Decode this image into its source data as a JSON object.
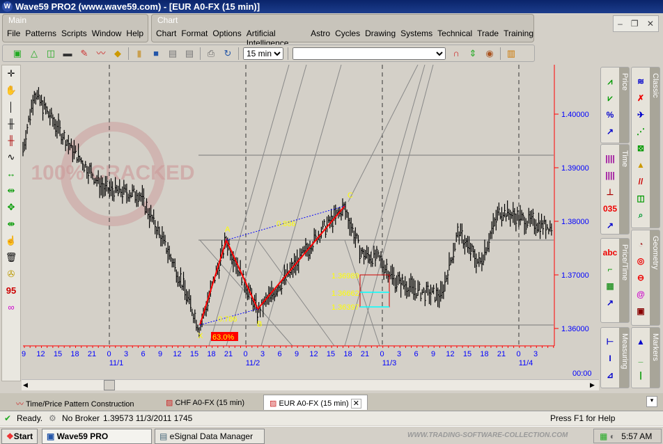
{
  "window": {
    "title": "Wave59 PRO2 (www.wave59.com)  - [EUR A0-FX (15 min)]"
  },
  "main_band": {
    "title": "Main",
    "menu": [
      "File",
      "Patterns",
      "Scripts",
      "Window",
      "Help"
    ]
  },
  "chart_band": {
    "title": "Chart",
    "menu": [
      "Chart",
      "Format",
      "Options",
      "Artificial Intelligence",
      "Astro",
      "Cycles",
      "Drawing",
      "Systems",
      "Technical",
      "Trade",
      "Training"
    ]
  },
  "toolbar": {
    "interval": "15 min",
    "symbol": ""
  },
  "right_panels": [
    {
      "label": "Price"
    },
    {
      "label": "Time"
    },
    {
      "label": "Price/Time"
    },
    {
      "label": "Measuring"
    },
    {
      "label": "Classic"
    },
    {
      "label": "Geometry"
    },
    {
      "label": "Markers"
    }
  ],
  "chart": {
    "price_ticks": [
      "1.40000",
      "1.39000",
      "1.38000",
      "1.37000",
      "1.36000"
    ],
    "hour_ticks": [
      "9",
      "12",
      "15",
      "18",
      "21",
      "0",
      "3",
      "6",
      "9",
      "12",
      "15",
      "18",
      "21",
      "0",
      "3",
      "6",
      "9",
      "12",
      "15",
      "18",
      "21",
      "0",
      "3",
      "6",
      "9",
      "12",
      "15",
      "18",
      "21",
      "0",
      "3"
    ],
    "date_ticks": [
      "11/1",
      "11/2",
      "11/3",
      "11/4"
    ],
    "time_readout": "00:00",
    "price_path": [
      [
        "10/31 09:00",
        1.3935
      ],
      [
        "10/31 11:00",
        1.404
      ],
      [
        "10/31 17:15",
        1.394
      ],
      [
        "10/31 21:00",
        1.389
      ],
      [
        "10/31 23:15",
        1.386
      ],
      [
        "11/1 05:30",
        1.385
      ],
      [
        "11/1 10:15",
        1.375
      ],
      [
        "11/1 12:45",
        1.369
      ],
      [
        "11/1 16:00",
        1.36
      ],
      [
        "11/1 20:45",
        1.3765
      ],
      [
        "11/2 02:15",
        1.363
      ],
      [
        "11/2 08:15",
        1.371
      ],
      [
        "11/2 13:15",
        1.378
      ],
      [
        "11/2 17:30",
        1.3825
      ],
      [
        "11/2 20:30",
        1.374
      ],
      [
        "11/2 23:30",
        1.373
      ],
      [
        "11/3 02:30",
        1.369
      ],
      [
        "11/3 06:15",
        1.367
      ],
      [
        "11/3 10:30",
        1.366
      ],
      [
        "11/3 13:30",
        1.378
      ],
      [
        "11/3 17:15",
        1.372
      ],
      [
        "11/3 20:45",
        1.382
      ],
      [
        "11/4 01:45",
        1.38
      ],
      [
        "11/4 06:00",
        1.379
      ]
    ],
    "pattern": {
      "points": [
        "X",
        "A",
        "B",
        "C"
      ],
      "ratio_xb": "0.786",
      "ratio_ac": "0.886",
      "completion": "63.0%"
    },
    "target_levels": [
      "1.36989",
      "1.36662",
      "1.36397"
    ],
    "colors": {
      "pattern": "#ff0000",
      "ratio_lines": "#0000ff",
      "labels": "#ffff00",
      "axis": "#0000ff"
    }
  },
  "tabs": [
    {
      "label": "Time/Price Pattern Construction"
    },
    {
      "label": "CHF A0-FX (15 min)"
    },
    {
      "label": "EUR A0-FX (15 min)",
      "active": true
    }
  ],
  "status": {
    "ready": "Ready.",
    "broker": "No Broker",
    "readout": "1.39573  11/3/2011  1745",
    "help": "Press F1 for Help"
  },
  "taskbar": {
    "start": "Start",
    "items": [
      "Wave59 PRO",
      "eSignal Data Manager"
    ],
    "watermark": "WWW.TRADING-SOFTWARE-COLLECTION.COM",
    "clock": "5:57 AM"
  },
  "watermark": {
    "text": "100% CRACKED",
    "ring": "TRADERS-SOFTWARE.COM"
  }
}
